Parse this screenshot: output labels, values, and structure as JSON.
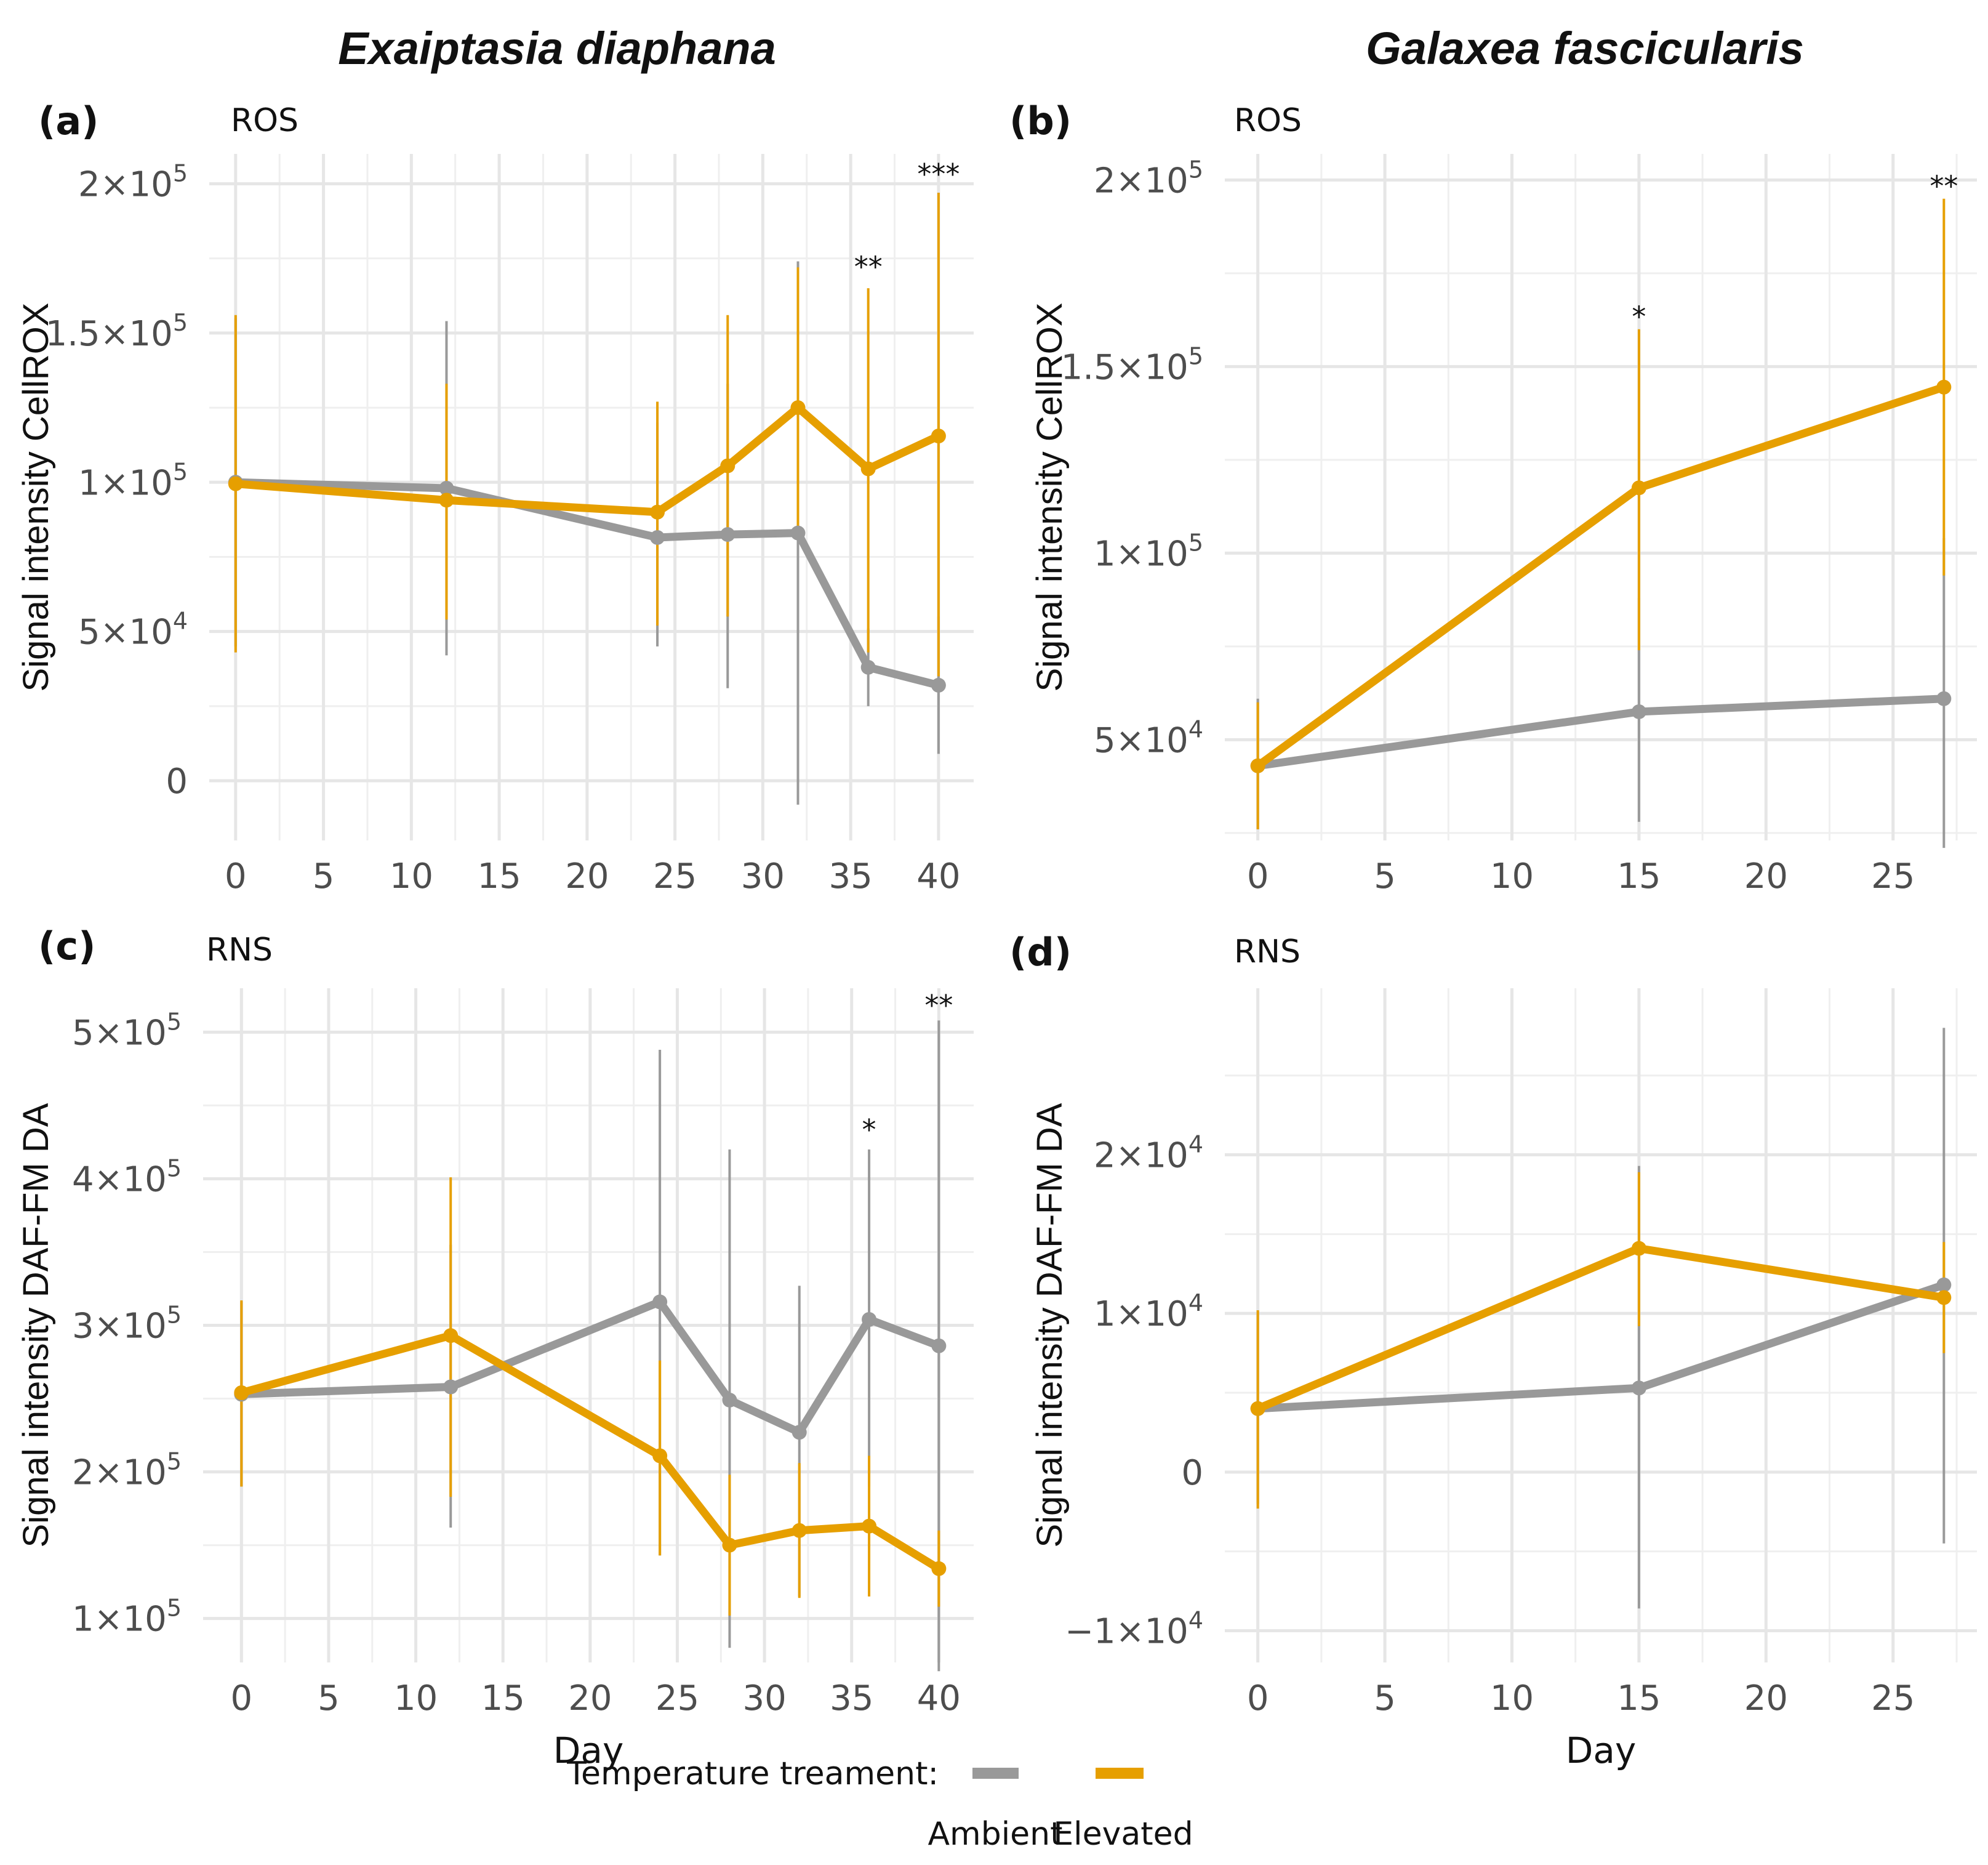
{
  "column_titles": [
    "Exaiptasia diaphana",
    "Galaxea fascicularis"
  ],
  "legend": {
    "title": "Temperature treament:",
    "items": [
      {
        "name": "Ambient",
        "color": "#999999"
      },
      {
        "name": "Elevated",
        "color": "#E69F00"
      }
    ]
  },
  "chart_data": [
    {
      "type": "line",
      "tag": "(a)",
      "subtitle": "ROS",
      "xlabel": "",
      "ylabel": "Signal intensity CellROX",
      "xlim": [
        -1.5,
        42
      ],
      "ylim": [
        -20000,
        210000
      ],
      "x_ticks": [
        0,
        5,
        10,
        15,
        20,
        25,
        30,
        35,
        40
      ],
      "x_tick_labels": [
        "0",
        "5",
        "10",
        "15",
        "20",
        "25",
        "30",
        "35",
        "40"
      ],
      "y_ticks": [
        0,
        50000,
        100000,
        150000,
        200000
      ],
      "y_tick_labels": [
        {
          "base": "0",
          "exp": ""
        },
        {
          "base": "5×10",
          "exp": "4"
        },
        {
          "base": "1×10",
          "exp": "5"
        },
        {
          "base": "1.5×10",
          "exp": "5"
        },
        {
          "base": "2×10",
          "exp": "5"
        }
      ],
      "series": [
        {
          "name": "Ambient",
          "x": [
            0,
            12,
            24,
            28,
            32,
            36,
            40
          ],
          "y": [
            100000,
            98000,
            81500,
            82500,
            83000,
            38000,
            32000
          ],
          "lo": [
            45000,
            42000,
            45000,
            31000,
            -8000,
            25000,
            9000
          ],
          "hi": [
            155000,
            154000,
            120000,
            133000,
            174000,
            51000,
            55000
          ]
        },
        {
          "name": "Elevated",
          "x": [
            0,
            12,
            24,
            28,
            32,
            36,
            40
          ],
          "y": [
            99500,
            94000,
            90000,
            105500,
            125000,
            104500,
            115500
          ],
          "lo": [
            43000,
            54000,
            52000,
            55000,
            84000,
            43000,
            35000
          ],
          "hi": [
            156000,
            133000,
            127000,
            156000,
            172000,
            165000,
            197000
          ]
        }
      ],
      "annotations": [
        {
          "x": 36,
          "y": 173000,
          "label": "**"
        },
        {
          "x": 40,
          "y": 204000,
          "label": "***"
        }
      ]
    },
    {
      "type": "line",
      "tag": "(b)",
      "subtitle": "ROS",
      "xlabel": "",
      "ylabel": "Signal intensity CellROX",
      "xlim": [
        -1.3,
        28.3
      ],
      "ylim": [
        23000,
        207000
      ],
      "x_ticks": [
        0,
        5,
        10,
        15,
        20,
        25
      ],
      "x_tick_labels": [
        "0",
        "5",
        "10",
        "15",
        "20",
        "25"
      ],
      "y_ticks": [
        50000,
        100000,
        150000,
        200000
      ],
      "y_tick_labels": [
        {
          "base": "5×10",
          "exp": "4"
        },
        {
          "base": "1×10",
          "exp": "5"
        },
        {
          "base": "1.5×10",
          "exp": "5"
        },
        {
          "base": "2×10",
          "exp": "5"
        }
      ],
      "series": [
        {
          "name": "Ambient",
          "x": [
            0,
            15,
            27
          ],
          "y": [
            43000,
            57500,
            61000
          ],
          "lo": [
            26000,
            28000,
            21000
          ],
          "hi": [
            61000,
            88000,
            104000
          ]
        },
        {
          "name": "Elevated",
          "x": [
            0,
            15,
            27
          ],
          "y": [
            43000,
            117500,
            144500
          ],
          "lo": [
            26000,
            74000,
            94000
          ],
          "hi": [
            60000,
            160000,
            195000
          ]
        }
      ],
      "annotations": [
        {
          "x": 15,
          "y": 164000,
          "label": "*"
        },
        {
          "x": 27,
          "y": 199000,
          "label": "**"
        }
      ]
    },
    {
      "type": "line",
      "tag": "(c)",
      "subtitle": "RNS",
      "xlabel": "Day",
      "ylabel": "Signal intensity DAF-FM DA",
      "xlim": [
        -2.2,
        42
      ],
      "ylim": [
        70000,
        530000
      ],
      "x_ticks": [
        0,
        5,
        10,
        15,
        20,
        25,
        30,
        35,
        40
      ],
      "x_tick_labels": [
        "0",
        "5",
        "10",
        "15",
        "20",
        "25",
        "30",
        "35",
        "40"
      ],
      "y_ticks": [
        100000,
        200000,
        300000,
        400000,
        500000
      ],
      "y_tick_labels": [
        {
          "base": "1×10",
          "exp": "5"
        },
        {
          "base": "2×10",
          "exp": "5"
        },
        {
          "base": "3×10",
          "exp": "5"
        },
        {
          "base": "4×10",
          "exp": "5"
        },
        {
          "base": "5×10",
          "exp": "5"
        }
      ],
      "series": [
        {
          "name": "Ambient",
          "x": [
            0,
            12,
            24,
            28,
            32,
            36,
            40
          ],
          "y": [
            253000,
            258000,
            316000,
            249000,
            227000,
            304000,
            286000
          ],
          "lo": [
            190000,
            162000,
            143000,
            80000,
            115000,
            190000,
            64000
          ],
          "hi": [
            316000,
            355000,
            488000,
            420000,
            327000,
            420000,
            508000
          ]
        },
        {
          "name": "Elevated",
          "x": [
            0,
            12,
            24,
            28,
            32,
            36,
            40
          ],
          "y": [
            254000,
            293000,
            211000,
            150000,
            160000,
            163000,
            134000
          ],
          "lo": [
            190000,
            183000,
            143000,
            102000,
            114000,
            115000,
            108000
          ],
          "hi": [
            317000,
            401000,
            276000,
            198000,
            206000,
            211000,
            160000
          ]
        }
      ],
      "annotations": [
        {
          "x": 36,
          "y": 435000,
          "label": "*"
        },
        {
          "x": 40,
          "y": 520000,
          "label": "**"
        }
      ]
    },
    {
      "type": "line",
      "tag": "(d)",
      "subtitle": "RNS",
      "xlabel": "Day",
      "ylabel": "Signal intensity DAF-FM DA",
      "xlim": [
        -1.3,
        28.3
      ],
      "ylim": [
        -12000,
        30500
      ],
      "x_ticks": [
        0,
        5,
        10,
        15,
        20,
        25
      ],
      "x_tick_labels": [
        "0",
        "5",
        "10",
        "15",
        "20",
        "25"
      ],
      "y_ticks": [
        -10000,
        0,
        10000,
        20000
      ],
      "y_tick_labels": [
        {
          "base": "−1×10",
          "exp": "4"
        },
        {
          "base": "0",
          "exp": ""
        },
        {
          "base": "1×10",
          "exp": "4"
        },
        {
          "base": "2×10",
          "exp": "4"
        }
      ],
      "series": [
        {
          "name": "Ambient",
          "x": [
            0,
            15,
            27
          ],
          "y": [
            4000,
            5300,
            11800
          ],
          "lo": [
            -2000,
            -8600,
            -4500
          ],
          "hi": [
            10100,
            19300,
            28000
          ]
        },
        {
          "name": "Elevated",
          "x": [
            0,
            15,
            27
          ],
          "y": [
            4000,
            14100,
            11000
          ],
          "lo": [
            -2300,
            9200,
            7500
          ],
          "hi": [
            10200,
            18900,
            14500
          ]
        }
      ],
      "annotations": []
    }
  ]
}
